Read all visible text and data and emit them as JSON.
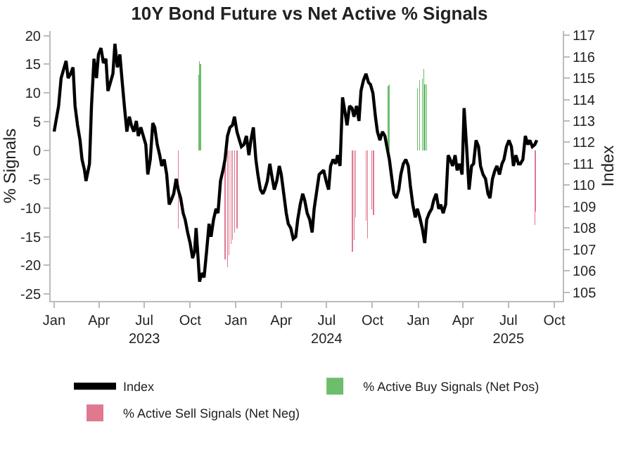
{
  "chart_data": {
    "type": "line",
    "title": "10Y Bond Future vs Net Active % Signals",
    "ylabel": "% Signals",
    "y2label": "Index",
    "legend": "bottom",
    "xlim": [
      "2022-12-25",
      "2025-10-18"
    ],
    "xticks": [
      {
        "value": "2023-01-01",
        "label": "Jan"
      },
      {
        "value": "2023-04-01",
        "label": "Apr"
      },
      {
        "value": "2023-07-01",
        "label": "Jul\n2023"
      },
      {
        "value": "2023-10-01",
        "label": "Oct"
      },
      {
        "value": "2024-01-01",
        "label": "Jan"
      },
      {
        "value": "2024-04-01",
        "label": "Apr"
      },
      {
        "value": "2024-07-01",
        "label": "Jul\n2024"
      },
      {
        "value": "2024-10-01",
        "label": "Oct"
      },
      {
        "value": "2025-01-01",
        "label": "Jan"
      },
      {
        "value": "2025-04-01",
        "label": "Apr"
      },
      {
        "value": "2025-07-01",
        "label": "Jul\n2025"
      },
      {
        "value": "2025-10-01",
        "label": "Oct"
      }
    ],
    "ylim": [
      -26.2,
      20.8
    ],
    "yticks": [
      -25,
      -20,
      -15,
      -10,
      -5,
      0,
      5,
      10,
      15,
      20
    ],
    "y2lim": [
      104.6,
      117.2
    ],
    "y2ticks": [
      105,
      106,
      107,
      108,
      109,
      110,
      111,
      112,
      113,
      114,
      115,
      116,
      117
    ],
    "series": [
      {
        "name": "Index",
        "axis": "y2",
        "color": "#000000",
        "x": [
          "2023-01-01",
          "2023-01-10",
          "2023-01-15",
          "2023-01-20",
          "2023-01-25",
          "2023-01-29",
          "2023-02-03",
          "2023-02-08",
          "2023-02-12",
          "2023-02-17",
          "2023-02-22",
          "2023-02-26",
          "2023-03-03",
          "2023-03-06",
          "2023-03-13",
          "2023-03-17",
          "2023-03-22",
          "2023-03-27",
          "2023-03-31",
          "2023-04-05",
          "2023-04-10",
          "2023-04-15",
          "2023-04-19",
          "2023-04-24",
          "2023-04-29",
          "2023-05-03",
          "2023-05-08",
          "2023-05-13",
          "2023-05-17",
          "2023-05-22",
          "2023-05-27",
          "2023-06-01",
          "2023-06-05",
          "2023-06-10",
          "2023-06-15",
          "2023-06-19",
          "2023-06-24",
          "2023-06-29",
          "2023-07-04",
          "2023-07-08",
          "2023-07-13",
          "2023-07-18",
          "2023-07-22",
          "2023-07-27",
          "2023-08-01",
          "2023-08-05",
          "2023-08-10",
          "2023-08-15",
          "2023-08-20",
          "2023-08-24",
          "2023-08-29",
          "2023-09-03",
          "2023-09-07",
          "2023-09-12",
          "2023-09-17",
          "2023-09-21",
          "2023-09-26",
          "2023-10-01",
          "2023-10-06",
          "2023-10-10",
          "2023-10-13",
          "2023-10-17",
          "2023-10-20",
          "2023-10-24",
          "2023-10-29",
          "2023-11-03",
          "2023-11-08",
          "2023-11-12",
          "2023-11-17",
          "2023-11-22",
          "2023-11-26",
          "2023-12-01",
          "2023-12-06",
          "2023-12-10",
          "2023-12-15",
          "2023-12-20",
          "2023-12-25",
          "2023-12-29",
          "2024-01-03",
          "2024-01-08",
          "2024-01-12",
          "2024-01-17",
          "2024-01-22",
          "2024-01-27",
          "2024-01-31",
          "2024-02-05",
          "2024-02-10",
          "2024-02-14",
          "2024-02-19",
          "2024-02-24",
          "2024-02-28",
          "2024-03-04",
          "2024-03-09",
          "2024-03-14",
          "2024-03-18",
          "2024-03-23",
          "2024-03-28",
          "2024-04-01",
          "2024-04-06",
          "2024-04-11",
          "2024-04-15",
          "2024-04-20",
          "2024-04-25",
          "2024-04-30",
          "2024-05-04",
          "2024-05-09",
          "2024-05-14",
          "2024-05-18",
          "2024-05-23",
          "2024-05-28",
          "2024-06-02",
          "2024-06-06",
          "2024-06-16",
          "2024-06-25",
          "2024-06-30",
          "2024-07-05",
          "2024-07-09",
          "2024-07-14",
          "2024-07-19",
          "2024-07-23",
          "2024-07-28",
          "2024-08-02",
          "2024-08-07",
          "2024-08-11",
          "2024-08-16",
          "2024-08-21",
          "2024-08-25",
          "2024-08-30",
          "2024-09-04",
          "2024-09-08",
          "2024-09-13",
          "2024-09-18",
          "2024-09-23",
          "2024-09-27",
          "2024-10-02",
          "2024-10-07",
          "2024-10-11",
          "2024-10-16",
          "2024-10-21",
          "2024-10-26",
          "2024-10-30",
          "2024-11-04",
          "2024-11-09",
          "2024-11-13",
          "2024-11-18",
          "2024-11-23",
          "2024-11-27",
          "2024-12-02",
          "2024-12-07",
          "2024-12-12",
          "2024-12-16",
          "2024-12-21",
          "2024-12-26",
          "2024-12-30",
          "2025-01-04",
          "2025-01-09",
          "2025-01-14",
          "2025-01-18",
          "2025-01-23",
          "2025-01-28",
          "2025-02-01",
          "2025-02-06",
          "2025-02-11",
          "2025-02-15",
          "2025-02-20",
          "2025-02-25",
          "2025-03-02",
          "2025-03-06",
          "2025-03-11",
          "2025-03-16",
          "2025-03-20",
          "2025-03-25",
          "2025-03-30",
          "2025-04-03",
          "2025-04-08",
          "2025-04-13",
          "2025-04-18",
          "2025-04-22",
          "2025-04-27",
          "2025-05-02",
          "2025-05-06",
          "2025-05-11",
          "2025-05-16",
          "2025-05-21",
          "2025-05-25",
          "2025-05-30",
          "2025-06-04",
          "2025-06-08",
          "2025-06-13",
          "2025-06-18",
          "2025-06-22",
          "2025-06-27",
          "2025-07-02",
          "2025-07-07",
          "2025-07-11",
          "2025-07-16",
          "2025-07-21",
          "2025-07-25",
          "2025-07-30",
          "2025-08-04",
          "2025-08-09",
          "2025-08-13",
          "2025-08-18",
          "2025-08-23",
          "2025-08-27"
        ],
        "values": [
          112.5,
          113.7,
          115.0,
          115.4,
          115.8,
          115.0,
          115.2,
          115.5,
          113.7,
          112.8,
          112.1,
          111.2,
          110.7,
          110.2,
          111.0,
          113.7,
          115.9,
          115.0,
          116.1,
          116.4,
          115.7,
          115.9,
          114.4,
          114.8,
          115.2,
          116.6,
          115.5,
          116.1,
          115.0,
          113.7,
          112.5,
          113.2,
          112.8,
          112.5,
          113.0,
          112.3,
          112.7,
          112.3,
          111.9,
          110.5,
          111.2,
          112.9,
          112.7,
          111.9,
          111.4,
          110.9,
          111.2,
          110.5,
          109.1,
          109.3,
          109.6,
          110.3,
          109.8,
          109.4,
          108.7,
          108.4,
          107.8,
          107.3,
          106.6,
          106.9,
          108.0,
          106.6,
          105.5,
          105.9,
          105.7,
          106.9,
          108.2,
          107.6,
          108.4,
          108.9,
          108.7,
          110.2,
          110.7,
          111.2,
          112.3,
          112.7,
          112.8,
          113.2,
          112.5,
          112.1,
          111.8,
          111.9,
          112.3,
          111.4,
          112.1,
          112.7,
          111.2,
          110.5,
          109.8,
          109.6,
          109.8,
          110.2,
          111.0,
          110.3,
          109.8,
          110.2,
          110.9,
          110.5,
          109.6,
          108.7,
          108.2,
          108.0,
          107.5,
          107.6,
          108.4,
          109.1,
          109.6,
          109.3,
          108.7,
          108.4,
          107.8,
          108.9,
          110.5,
          110.7,
          110.2,
          109.8,
          110.9,
          111.2,
          111.0,
          111.4,
          110.9,
          114.1,
          113.4,
          112.8,
          113.7,
          113.6,
          113.2,
          113.7,
          113.0,
          114.4,
          114.9,
          115.2,
          114.8,
          114.7,
          114.3,
          113.2,
          112.5,
          112.1,
          112.5,
          112.3,
          111.8,
          111.2,
          110.3,
          109.6,
          109.4,
          109.8,
          110.5,
          111.0,
          111.2,
          110.9,
          110.0,
          109.1,
          108.5,
          108.9,
          108.5,
          108.0,
          107.3,
          108.4,
          108.7,
          108.9,
          109.3,
          109.6,
          108.9,
          109.1,
          108.7,
          109.1,
          111.4,
          111.2,
          110.9,
          111.4,
          110.7,
          111.0,
          110.5,
          113.6,
          111.8,
          109.8,
          110.9,
          111.0,
          112.1,
          111.8,
          110.9,
          110.5,
          110.3,
          109.6,
          109.4,
          110.3,
          110.7,
          110.9,
          110.5,
          111.0,
          111.2,
          111.8,
          112.1,
          111.8,
          110.9,
          111.4,
          111.0,
          111.0,
          111.2,
          112.3,
          111.9,
          112.1,
          111.8,
          111.9,
          112.1
        ]
      },
      {
        "name": "% Active Buy Signals (Net Pos)",
        "type": "bar",
        "color": "#6cbd6c",
        "x": [
          "2023-10-18",
          "2023-10-20",
          "2023-10-22",
          "2024-11-02",
          "2024-11-04",
          "2024-12-30",
          "2025-01-04",
          "2025-01-09",
          "2025-01-12",
          "2025-01-14",
          "2025-01-18"
        ],
        "values": [
          13.2,
          15.5,
          15,
          11.2,
          11.5,
          10.8,
          12.2,
          12.5,
          14.2,
          11.5,
          11.5
        ]
      },
      {
        "name": "% Active Sell Signals (Net Neg)",
        "type": "bar",
        "color": "#e07890",
        "x": [
          "2023-09-07",
          "2023-12-10",
          "2023-12-15",
          "2023-12-18",
          "2023-12-22",
          "2023-12-25",
          "2023-12-29",
          "2024-01-03",
          "2024-08-22",
          "2024-08-25",
          "2024-08-28",
          "2024-09-18",
          "2024-09-21",
          "2024-09-30",
          "2024-10-03",
          "2025-08-23",
          "2025-08-25"
        ],
        "values": [
          -13.6,
          -19,
          -20.3,
          -18.3,
          -16.3,
          -15.6,
          -14.3,
          -13.6,
          -17.6,
          -15.6,
          -11.6,
          -12.3,
          -15.3,
          -10.3,
          -11.3,
          -13,
          -10.6
        ]
      }
    ]
  }
}
